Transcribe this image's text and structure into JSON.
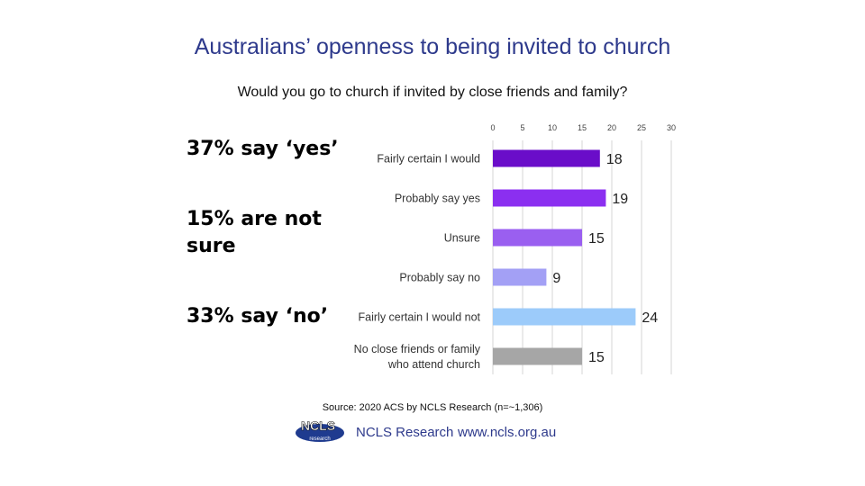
{
  "title": "Australians’ openness to being invited to church",
  "subtitle": "Would you go to church if invited by close friends and family?",
  "callouts": {
    "yes": "37% say ‘yes’",
    "not_sure_line1": "15% are not",
    "not_sure_line2": "sure",
    "no": "33% say ‘no’"
  },
  "source": "Source: 2020 ACS by NCLS Research (n=~1,306)",
  "logo": {
    "main": "NCLS",
    "sub": "research"
  },
  "footer": {
    "org": "NCLS Research",
    "url": "www.ncls.org.au"
  },
  "chart_data": {
    "type": "bar",
    "orientation": "horizontal",
    "categories": [
      [
        "Fairly certain I would"
      ],
      [
        "Probably say yes"
      ],
      [
        "Unsure"
      ],
      [
        "Probably say no"
      ],
      [
        "Fairly certain I would not"
      ],
      [
        "No close friends or family",
        "who attend church"
      ]
    ],
    "values": [
      18,
      19,
      15,
      9,
      24,
      15
    ],
    "colors": [
      "#6a0dc9",
      "#8b2ff0",
      "#9a5ff0",
      "#a3a0f5",
      "#9ccbfa",
      "#a6a6a6"
    ],
    "xlim": [
      0,
      30
    ],
    "xticks": [
      0,
      5,
      10,
      15,
      20,
      25,
      30
    ],
    "grid": true,
    "axis_position": "top"
  }
}
